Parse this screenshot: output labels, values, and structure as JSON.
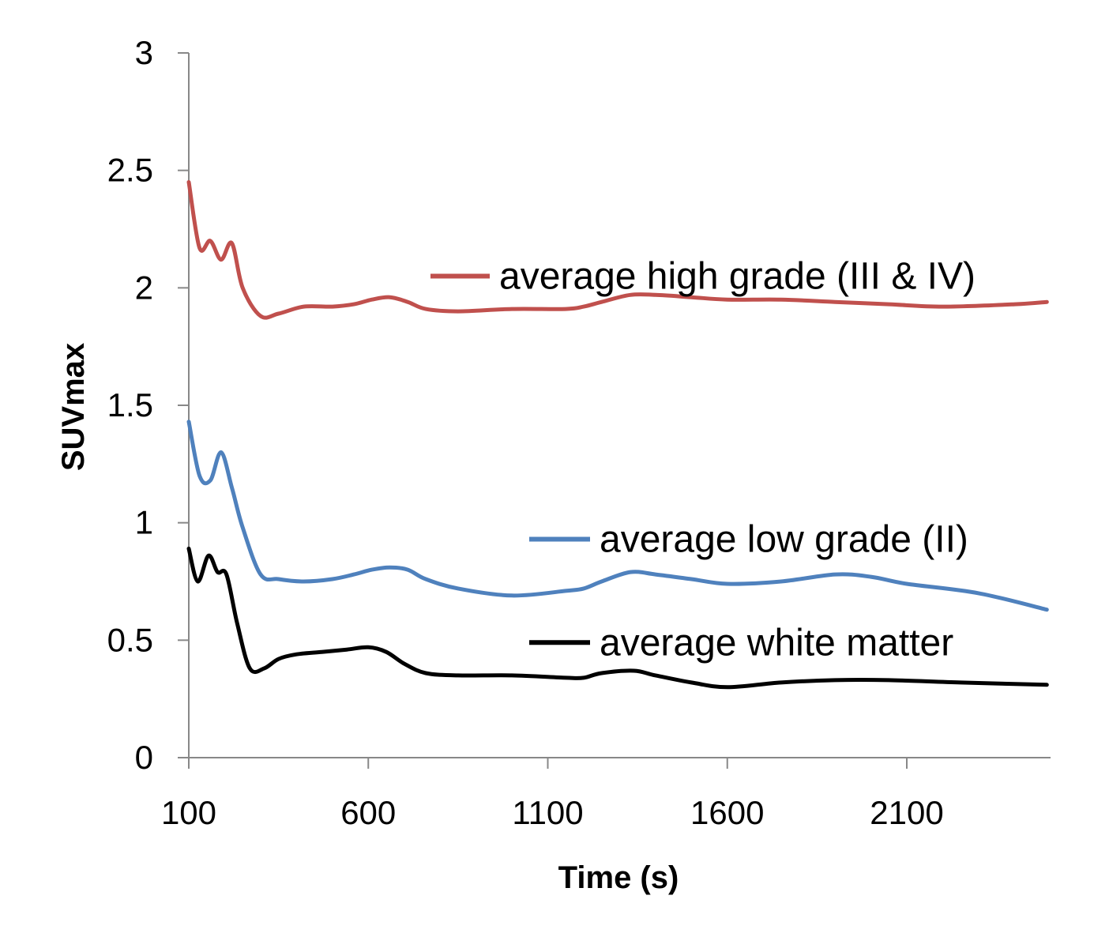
{
  "chart_data": {
    "type": "line",
    "title": "",
    "xlabel": "Time (s)",
    "ylabel": "SUVmax",
    "xlim": [
      100,
      2500
    ],
    "ylim": [
      0,
      3
    ],
    "x_ticks": [
      100,
      600,
      1100,
      1600,
      2100
    ],
    "x_tick_labels": [
      "100",
      "600",
      "1100",
      "1600",
      "2100"
    ],
    "y_ticks": [
      0,
      0.5,
      1,
      1.5,
      2,
      2.5,
      3
    ],
    "y_tick_labels": [
      "0",
      "0.5",
      "1",
      "1.5",
      "2",
      "2.5",
      "3"
    ],
    "grid": false,
    "legend_position": "inline",
    "series": [
      {
        "name": "average high grade (III & IV)",
        "color": "#c0504d",
        "x": [
          100,
          130,
          160,
          190,
          220,
          250,
          300,
          350,
          420,
          500,
          560,
          610,
          660,
          710,
          760,
          850,
          1000,
          1150,
          1200,
          1250,
          1330,
          1400,
          1500,
          1600,
          1750,
          1900,
          2050,
          2200,
          2400,
          2490
        ],
        "y": [
          2.45,
          2.17,
          2.2,
          2.12,
          2.19,
          2.0,
          1.88,
          1.89,
          1.92,
          1.92,
          1.93,
          1.95,
          1.96,
          1.94,
          1.91,
          1.9,
          1.91,
          1.91,
          1.92,
          1.94,
          1.97,
          1.97,
          1.96,
          1.95,
          1.95,
          1.94,
          1.93,
          1.92,
          1.93,
          1.94
        ]
      },
      {
        "name": "average low grade (II)",
        "color": "#4f81bd",
        "x": [
          100,
          130,
          160,
          190,
          220,
          250,
          300,
          350,
          420,
          500,
          560,
          610,
          660,
          710,
          760,
          850,
          1000,
          1150,
          1200,
          1250,
          1330,
          1400,
          1500,
          1600,
          1750,
          1900,
          2000,
          2100,
          2300,
          2490
        ],
        "y": [
          1.43,
          1.2,
          1.18,
          1.3,
          1.15,
          0.98,
          0.78,
          0.76,
          0.75,
          0.76,
          0.78,
          0.8,
          0.81,
          0.8,
          0.76,
          0.72,
          0.69,
          0.71,
          0.72,
          0.75,
          0.79,
          0.78,
          0.76,
          0.74,
          0.75,
          0.78,
          0.77,
          0.74,
          0.7,
          0.63
        ]
      },
      {
        "name": "average white matter",
        "color": "#000000",
        "x": [
          100,
          125,
          155,
          180,
          205,
          235,
          270,
          310,
          350,
          400,
          470,
          540,
          600,
          650,
          700,
          760,
          850,
          1000,
          1150,
          1200,
          1250,
          1340,
          1400,
          1500,
          1600,
          1750,
          1900,
          2050,
          2250,
          2490
        ],
        "y": [
          0.89,
          0.75,
          0.86,
          0.79,
          0.78,
          0.57,
          0.38,
          0.38,
          0.42,
          0.44,
          0.45,
          0.46,
          0.47,
          0.45,
          0.4,
          0.36,
          0.35,
          0.35,
          0.34,
          0.34,
          0.36,
          0.37,
          0.35,
          0.32,
          0.3,
          0.32,
          0.33,
          0.33,
          0.32,
          0.31
        ]
      }
    ],
    "legend": [
      {
        "label": "average high grade (III & IV)",
        "color": "#c0504d",
        "anchor_y": 2.05
      },
      {
        "label": "average low grade (II)",
        "color": "#4f81bd",
        "anchor_y": 0.93
      },
      {
        "label": "average white matter",
        "color": "#000000",
        "anchor_y": 0.49
      }
    ]
  }
}
